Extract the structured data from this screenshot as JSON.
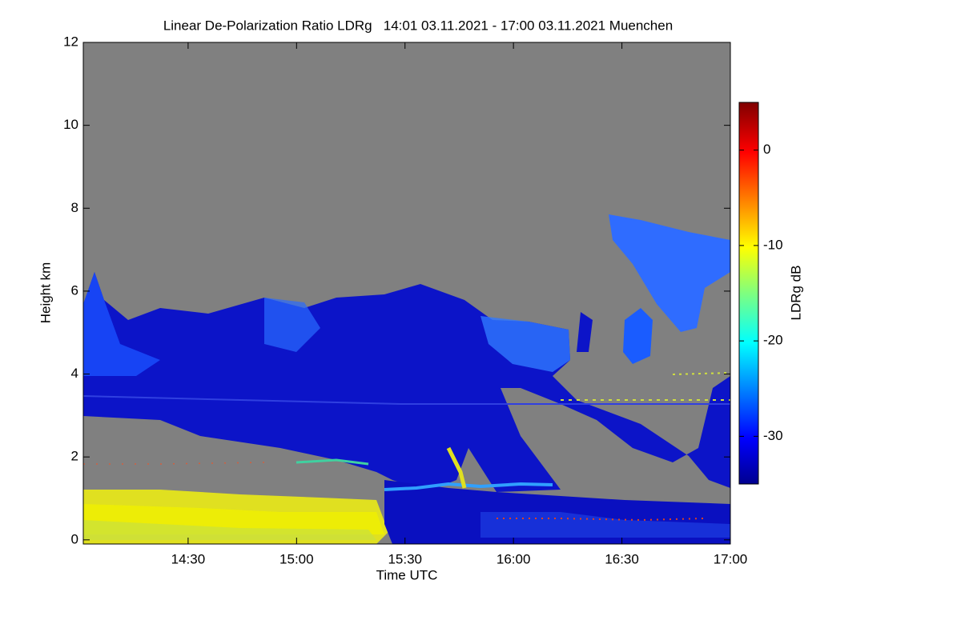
{
  "chart_data": {
    "type": "heatmap",
    "title": "Linear De-Polarization Ratio LDRg   14:01 03.11.2021 - 17:00 03.11.2021 Muenchen",
    "x_label": "Time UTC",
    "y_label": "Height km",
    "xlim": [
      14.0167,
      17.0
    ],
    "xticks": [
      {
        "value": 14.5,
        "label": "14:30"
      },
      {
        "value": 15.0,
        "label": "15:00"
      },
      {
        "value": 15.5,
        "label": "15:30"
      },
      {
        "value": 16.0,
        "label": "16:00"
      },
      {
        "value": 16.5,
        "label": "16:30"
      },
      {
        "value": 17.0,
        "label": "17:00"
      }
    ],
    "ylim": [
      -0.1,
      12
    ],
    "yticks": [
      0,
      2,
      4,
      6,
      8,
      10,
      12
    ],
    "colorbar_label": "LDRg dB",
    "clim": [
      -35,
      5
    ],
    "cticks": [
      0,
      -10,
      -20,
      -30
    ]
  }
}
